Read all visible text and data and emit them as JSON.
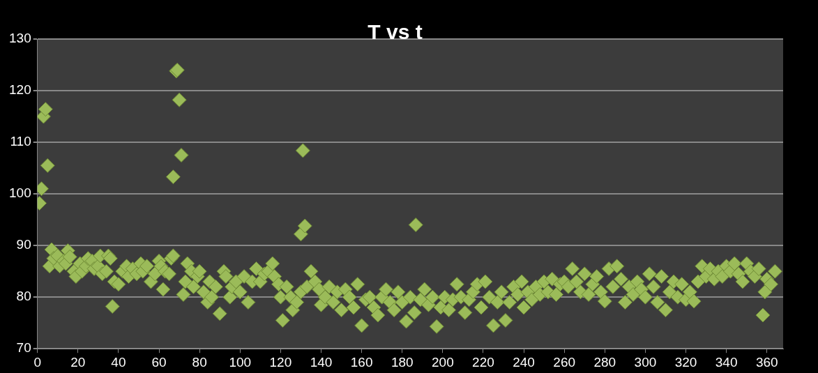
{
  "chart_data": {
    "type": "scatter",
    "title": "T vs t",
    "x": [
      1,
      2,
      3,
      4,
      5,
      6,
      7,
      8,
      10,
      11,
      13,
      14,
      15,
      16,
      18,
      19,
      21,
      22,
      24,
      25,
      27,
      28,
      30,
      31,
      32,
      34,
      35,
      36,
      37,
      38,
      40,
      42,
      44,
      45,
      47,
      49,
      51,
      52,
      54,
      56,
      58,
      60,
      61,
      62,
      63,
      65,
      66,
      67,
      67,
      68.5,
      69,
      70,
      71,
      72,
      73,
      74,
      76,
      77,
      79,
      80,
      82,
      84,
      85,
      86,
      88,
      90,
      92,
      93,
      95,
      96,
      98,
      100,
      102,
      104,
      106,
      108,
      110,
      112,
      114,
      116,
      117,
      119,
      120,
      121,
      123,
      125,
      126,
      128,
      130,
      130,
      131,
      132,
      133,
      135,
      137,
      139,
      140,
      142,
      144,
      146,
      148,
      150,
      152,
      154,
      156,
      158,
      160,
      162,
      164,
      166,
      168,
      170,
      172,
      174,
      176,
      178,
      180,
      182,
      184,
      186,
      186.7,
      189,
      191,
      193,
      195,
      197,
      199,
      201,
      203,
      205,
      207,
      209,
      211,
      213,
      215,
      217,
      219,
      221,
      223,
      225,
      227,
      229,
      231,
      233,
      235,
      237,
      239,
      240,
      242,
      244,
      246,
      248,
      250,
      252,
      254,
      256,
      258,
      260,
      262,
      264,
      266,
      268,
      270,
      272,
      274,
      276,
      278,
      280,
      282,
      284,
      286,
      288,
      290,
      292,
      294,
      296,
      298,
      300,
      302,
      304,
      306,
      308,
      310,
      312,
      314,
      316,
      318,
      320,
      322,
      324,
      326,
      328,
      330,
      332,
      334,
      336,
      338,
      340,
      342,
      344,
      346,
      348,
      350,
      352,
      354,
      356,
      358,
      359,
      360,
      362,
      364
    ],
    "values": [
      98.2,
      101,
      115,
      116.4,
      105.5,
      86,
      89.2,
      87.5,
      88,
      86,
      87,
      86.5,
      89,
      87.8,
      85,
      84,
      86.5,
      85,
      86,
      87.5,
      87,
      85.5,
      86,
      88,
      84.5,
      85,
      88,
      87.5,
      78.2,
      83,
      82.5,
      85,
      86,
      84,
      85.5,
      84.5,
      86.5,
      85,
      86,
      83,
      84.5,
      87,
      86,
      81.5,
      85,
      84.5,
      87.5,
      88,
      103.3,
      123.8,
      124,
      118.2,
      107.5,
      80.5,
      83,
      86.5,
      85,
      82,
      84,
      85,
      81,
      79,
      83,
      80,
      82,
      76.8,
      85,
      84,
      80,
      82,
      83,
      81,
      84,
      79,
      83,
      85.5,
      83,
      84.5,
      85,
      86.5,
      84,
      82.5,
      80,
      75.5,
      82,
      80,
      77.5,
      79,
      81,
      92.2,
      108.4,
      93.8,
      82,
      85,
      83,
      81.5,
      78.5,
      80,
      82,
      79,
      81,
      77.5,
      81.5,
      80,
      78,
      82.5,
      74.5,
      79.5,
      80,
      78,
      76.5,
      80,
      81.5,
      79,
      77.5,
      81,
      79,
      75.3,
      80,
      77,
      94,
      79.5,
      81.5,
      78.5,
      80,
      74.3,
      78,
      80,
      77.5,
      79.5,
      82.5,
      80,
      77,
      79.5,
      81,
      82.5,
      78,
      83,
      80,
      74.5,
      79,
      81,
      75.5,
      79,
      82,
      80.5,
      83,
      78,
      81,
      79.5,
      82,
      80.5,
      83,
      81,
      83.5,
      80.5,
      82.5,
      83,
      82,
      85.5,
      83,
      81,
      84.5,
      80.5,
      82.5,
      84,
      81,
      79.2,
      85.5,
      82,
      86,
      83.5,
      79,
      82,
      80.5,
      83,
      81.5,
      80,
      84.5,
      82,
      79,
      84,
      77.5,
      81,
      83,
      80,
      82.5,
      79.5,
      81,
      79.2,
      83,
      86,
      84,
      85.5,
      83.5,
      85,
      84,
      86,
      85,
      86.5,
      84.5,
      83,
      86.5,
      85,
      84,
      85.5,
      76.5,
      81,
      83.5,
      82.5,
      85
    ],
    "color": "#9bbb59",
    "marker": "diamond",
    "xlim": [
      0,
      368
    ],
    "xticks": [
      0,
      20,
      40,
      60,
      80,
      100,
      120,
      140,
      160,
      180,
      200,
      220,
      240,
      260,
      280,
      300,
      320,
      340,
      360
    ],
    "ylim": [
      70,
      130
    ],
    "yticks": [
      70,
      80,
      90,
      100,
      110,
      120,
      130
    ],
    "grid": "y"
  }
}
